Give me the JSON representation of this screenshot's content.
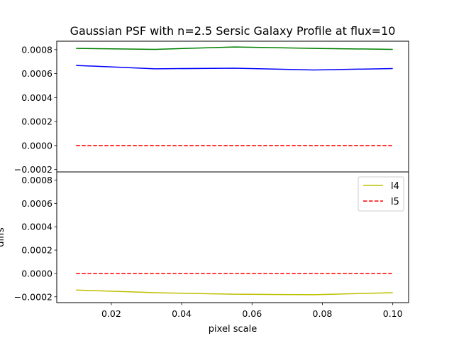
{
  "chart_data": {
    "title": "Gaussian PSF with n=2.5 Sersic Galaxy Profile at flux=10",
    "type": "line",
    "xlabel": "pixel scale",
    "ylabel": "diffs",
    "x_ticks": [
      "0.02",
      "0.04",
      "0.06",
      "0.08",
      "0.10"
    ],
    "x_tick_values": [
      0.02,
      0.04,
      0.06,
      0.08,
      0.1
    ],
    "y_ticks": [
      "−0.0002",
      "0.0000",
      "0.0002",
      "0.0004",
      "0.0006",
      "0.0008"
    ],
    "y_tick_values": [
      -0.0002,
      0.0,
      0.0002,
      0.0004,
      0.0006,
      0.0008
    ],
    "xlim": [
      0.0045,
      0.1045
    ],
    "panels": [
      {
        "ylim": [
          -0.00022,
          0.00087
        ],
        "series": [
          {
            "color": "#008000",
            "dashed": false,
            "x": [
              0.01,
              0.0325,
              0.055,
              0.0775,
              0.1
            ],
            "y": [
              0.00081,
              0.000802,
              0.000822,
              0.00081,
              0.000802
            ]
          },
          {
            "color": "#0000ff",
            "dashed": false,
            "x": [
              0.01,
              0.0325,
              0.055,
              0.0775,
              0.1
            ],
            "y": [
              0.000668,
              0.00064,
              0.000645,
              0.00063,
              0.000642
            ]
          },
          {
            "color": "#ff0000",
            "dashed": true,
            "x": [
              0.01,
              0.0325,
              0.055,
              0.0775,
              0.1
            ],
            "y": [
              0.0,
              0.0,
              0.0,
              0.0,
              0.0
            ]
          }
        ]
      },
      {
        "ylim": [
          -0.00025,
          0.00087
        ],
        "series": [
          {
            "name": "l4",
            "color": "#bfbf00",
            "dashed": false,
            "x": [
              0.01,
              0.0325,
              0.055,
              0.0775,
              0.1
            ],
            "y": [
              -0.000142,
              -0.000165,
              -0.000178,
              -0.000182,
              -0.000165
            ]
          },
          {
            "name": "l5",
            "color": "#ff0000",
            "dashed": true,
            "x": [
              0.01,
              0.0325,
              0.055,
              0.0775,
              0.1
            ],
            "y": [
              0.0,
              0.0,
              0.0,
              0.0,
              0.0
            ]
          }
        ],
        "legend": {
          "position": "top-right",
          "entries": [
            "l4",
            "l5"
          ]
        }
      }
    ]
  }
}
